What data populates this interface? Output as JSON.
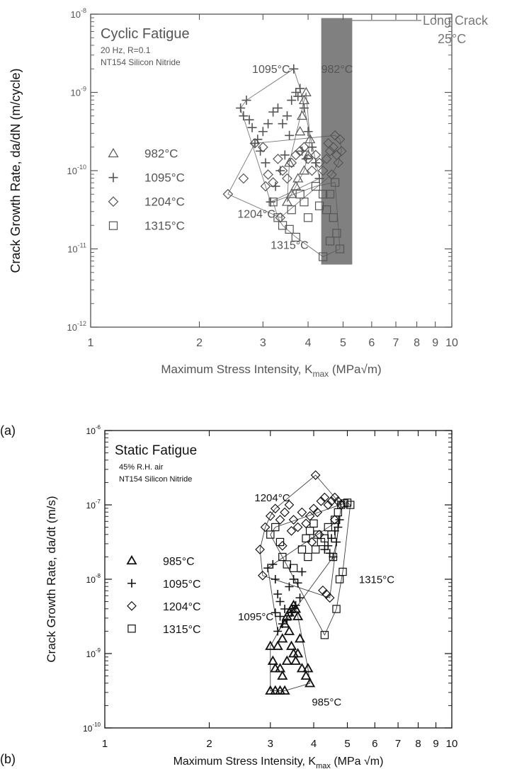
{
  "panel_labels": [
    "(a)",
    "(b)"
  ],
  "chart_data": [
    {
      "type": "scatter",
      "title": "Cyclic Fatigue",
      "subtitle_lines": [
        "20 Hz, R=0.1",
        "NT154 Silicon Nitride"
      ],
      "xlabel": "Maximum Stress Intensity, K",
      "xlabel_sub": "max",
      "xlabel_unit": " (MPa√m)",
      "ylabel": "Crack Growth Rate, da/dN (m/cycle)",
      "x_scale": "log",
      "y_scale": "log",
      "xlim": [
        1,
        10
      ],
      "ylim_exp": [
        -12,
        -8
      ],
      "x_ticks": [
        1,
        2,
        3,
        4,
        5,
        6,
        7,
        8,
        9,
        10
      ],
      "legend_position": "left",
      "band": {
        "label_lines": [
          "Long Crack",
          "25°C"
        ],
        "x": [
          4.35,
          5.3
        ],
        "y_exp": [
          -11.2,
          -8.05
        ]
      },
      "annotations": [
        {
          "text": "1095°C",
          "x": 2.8,
          "y_exp": -8.75
        },
        {
          "text": "982°C",
          "x": 4.35,
          "y_exp": -8.75
        },
        {
          "text": "1204°C",
          "x": 2.55,
          "y_exp": -10.6
        },
        {
          "text": "1315°C",
          "x": 3.15,
          "y_exp": -11.0
        }
      ],
      "series": [
        {
          "name": "982°C",
          "marker": "triangle",
          "points": [
            [
              3.5,
              -10.4
            ],
            [
              3.7,
              -10.2
            ],
            [
              3.9,
              -10.0
            ],
            [
              4.0,
              -9.8
            ],
            [
              3.8,
              -9.5
            ],
            [
              3.9,
              -9.1
            ],
            [
              3.95,
              -9.0
            ],
            [
              3.6,
              -10.3
            ],
            [
              3.55,
              -9.9
            ],
            [
              4.05,
              -9.6
            ],
            [
              3.75,
              -10.1
            ],
            [
              3.85,
              -9.3
            ]
          ]
        },
        {
          "name": "1095°C",
          "marker": "plus",
          "points": [
            [
              2.6,
              -9.2
            ],
            [
              2.7,
              -9.1
            ],
            [
              2.65,
              -9.3
            ],
            [
              2.75,
              -9.35
            ],
            [
              2.8,
              -9.45
            ],
            [
              2.9,
              -9.6
            ],
            [
              3.0,
              -9.5
            ],
            [
              3.1,
              -9.4
            ],
            [
              3.2,
              -9.25
            ],
            [
              3.3,
              -9.2
            ],
            [
              3.4,
              -9.4
            ],
            [
              3.5,
              -9.3
            ],
            [
              3.6,
              -9.1
            ],
            [
              3.7,
              -9.0
            ],
            [
              3.8,
              -8.95
            ],
            [
              3.9,
              -9.2
            ],
            [
              4.0,
              -9.5
            ],
            [
              4.1,
              -9.7
            ],
            [
              4.2,
              -9.9
            ],
            [
              4.3,
              -10.1
            ],
            [
              3.65,
              -8.7
            ],
            [
              3.75,
              -9.05
            ],
            [
              3.55,
              -9.55
            ],
            [
              3.45,
              -9.8
            ],
            [
              3.35,
              -10.0
            ],
            [
              3.25,
              -10.2
            ],
            [
              3.15,
              -10.4
            ],
            [
              3.05,
              -9.9
            ],
            [
              2.95,
              -9.75
            ],
            [
              2.85,
              -9.65
            ],
            [
              3.85,
              -9.75
            ],
            [
              3.95,
              -9.85
            ]
          ]
        },
        {
          "name": "1204°C",
          "marker": "diamond",
          "points": [
            [
              2.4,
              -10.3
            ],
            [
              2.65,
              -10.1
            ],
            [
              2.85,
              -9.65
            ],
            [
              3.0,
              -9.7
            ],
            [
              3.05,
              -10.2
            ],
            [
              3.1,
              -10.05
            ],
            [
              3.2,
              -10.15
            ],
            [
              3.3,
              -9.85
            ],
            [
              3.4,
              -10.0
            ],
            [
              3.5,
              -10.1
            ],
            [
              3.6,
              -9.9
            ],
            [
              3.7,
              -9.8
            ],
            [
              3.8,
              -9.75
            ],
            [
              3.9,
              -9.7
            ],
            [
              4.0,
              -9.85
            ],
            [
              4.1,
              -10.0
            ],
            [
              4.2,
              -9.8
            ],
            [
              4.3,
              -9.9
            ],
            [
              4.4,
              -10.0
            ],
            [
              4.5,
              -9.85
            ],
            [
              4.6,
              -9.75
            ],
            [
              4.7,
              -9.7
            ],
            [
              4.8,
              -9.8
            ],
            [
              4.9,
              -9.6
            ],
            [
              3.35,
              -10.6
            ],
            [
              4.75,
              -9.55
            ],
            [
              4.85,
              -9.9
            ],
            [
              4.65,
              -10.05
            ],
            [
              4.55,
              -9.65
            ],
            [
              4.95,
              -9.75
            ]
          ]
        },
        {
          "name": "1315°C",
          "marker": "square",
          "points": [
            [
              3.2,
              -10.4
            ],
            [
              3.3,
              -10.6
            ],
            [
              3.4,
              -10.7
            ],
            [
              3.6,
              -10.5
            ],
            [
              3.8,
              -10.3
            ],
            [
              3.9,
              -10.4
            ],
            [
              4.0,
              -10.6
            ],
            [
              4.2,
              -10.2
            ],
            [
              4.4,
              -10.3
            ],
            [
              4.5,
              -10.5
            ],
            [
              4.6,
              -10.3
            ],
            [
              4.7,
              -10.6
            ],
            [
              4.8,
              -10.8
            ],
            [
              4.9,
              -11.0
            ],
            [
              4.6,
              -10.9
            ],
            [
              4.4,
              -11.1
            ],
            [
              3.7,
              -10.85
            ],
            [
              3.55,
              -10.75
            ],
            [
              4.3,
              -10.45
            ],
            [
              4.75,
              -10.15
            ]
          ]
        }
      ]
    },
    {
      "type": "scatter",
      "title": "Static Fatigue",
      "subtitle_lines": [
        "45% R.H. air",
        "NT154 Silicon Nitride"
      ],
      "xlabel": "Maximum Stress Intensity, K",
      "xlabel_sub": "max",
      "xlabel_unit": "  (MPa √m)",
      "ylabel": "Crack Growth Rate, da/dt (m/s)",
      "x_scale": "log",
      "y_scale": "log",
      "xlim": [
        1,
        10
      ],
      "ylim_exp": [
        -10,
        -6
      ],
      "x_ticks": [
        1,
        2,
        3,
        4,
        5,
        6,
        7,
        8,
        9,
        10
      ],
      "legend_position": "left",
      "annotations": [
        {
          "text": "1204°C",
          "x": 2.7,
          "y_exp": -6.95
        },
        {
          "text": "1315°C",
          "x": 5.4,
          "y_exp": -8.05
        },
        {
          "text": "1095°C",
          "x": 2.42,
          "y_exp": -8.55
        },
        {
          "text": "985°C",
          "x": 3.95,
          "y_exp": -9.7
        }
      ],
      "series": [
        {
          "name": "985°C",
          "marker": "triangle",
          "points": [
            [
              3.0,
              -9.5
            ],
            [
              3.1,
              -9.5
            ],
            [
              3.2,
              -9.5
            ],
            [
              3.3,
              -9.5
            ],
            [
              3.05,
              -9.1
            ],
            [
              3.15,
              -8.9
            ],
            [
              3.2,
              -9.2
            ],
            [
              3.25,
              -8.8
            ],
            [
              3.3,
              -8.6
            ],
            [
              3.35,
              -8.5
            ],
            [
              3.4,
              -8.45
            ],
            [
              3.45,
              -8.4
            ],
            [
              3.5,
              -8.35
            ],
            [
              3.55,
              -8.4
            ],
            [
              3.6,
              -8.5
            ],
            [
              3.4,
              -8.7
            ],
            [
              3.45,
              -8.9
            ],
            [
              3.5,
              -9.0
            ],
            [
              3.55,
              -9.1
            ],
            [
              3.6,
              -9.0
            ],
            [
              3.7,
              -9.2
            ],
            [
              3.8,
              -9.3
            ],
            [
              3.9,
              -9.4
            ],
            [
              3.85,
              -9.2
            ],
            [
              3.65,
              -8.8
            ],
            [
              3.35,
              -9.1
            ],
            [
              3.25,
              -9.3
            ],
            [
              3.1,
              -9.2
            ],
            [
              3.0,
              -8.9
            ]
          ]
        },
        {
          "name": "1095°C",
          "marker": "plus",
          "points": [
            [
              2.95,
              -7.85
            ],
            [
              3.05,
              -7.8
            ],
            [
              3.1,
              -8.0
            ],
            [
              3.15,
              -8.2
            ],
            [
              3.2,
              -8.3
            ],
            [
              3.3,
              -8.4
            ],
            [
              3.4,
              -8.1
            ],
            [
              3.5,
              -8.0
            ],
            [
              3.6,
              -8.05
            ],
            [
              3.7,
              -7.9
            ],
            [
              3.2,
              -8.5
            ],
            [
              3.15,
              -8.7
            ],
            [
              3.25,
              -8.6
            ],
            [
              3.35,
              -8.55
            ],
            [
              3.45,
              -8.45
            ],
            [
              3.55,
              -8.35
            ],
            [
              3.65,
              -8.25
            ],
            [
              3.1,
              -8.45
            ],
            [
              4.3,
              -7.6
            ],
            [
              4.4,
              -7.55
            ],
            [
              4.5,
              -7.45
            ],
            [
              4.6,
              -7.35
            ],
            [
              4.7,
              -7.3
            ],
            [
              4.75,
              -7.2
            ],
            [
              4.65,
              -7.5
            ],
            [
              4.55,
              -7.7
            ],
            [
              4.45,
              -7.65
            ]
          ]
        },
        {
          "name": "1204°C",
          "marker": "diamond",
          "points": [
            [
              2.8,
              -7.6
            ],
            [
              2.9,
              -7.3
            ],
            [
              3.0,
              -7.15
            ],
            [
              3.1,
              -7.05
            ],
            [
              3.2,
              -7.2
            ],
            [
              3.3,
              -7.1
            ],
            [
              3.4,
              -7.0
            ],
            [
              3.5,
              -7.2
            ],
            [
              3.6,
              -7.3
            ],
            [
              3.7,
              -7.1
            ],
            [
              3.8,
              -7.25
            ],
            [
              3.9,
              -7.15
            ],
            [
              4.0,
              -7.05
            ],
            [
              4.1,
              -7.1
            ],
            [
              4.2,
              -6.95
            ],
            [
              4.3,
              -6.9
            ],
            [
              4.4,
              -7.0
            ],
            [
              4.5,
              -6.95
            ],
            [
              4.6,
              -6.9
            ],
            [
              4.7,
              -6.95
            ],
            [
              4.8,
              -7.0
            ],
            [
              4.05,
              -6.6
            ],
            [
              2.85,
              -7.95
            ],
            [
              3.25,
              -7.55
            ],
            [
              3.45,
              -7.35
            ],
            [
              4.15,
              -7.4
            ],
            [
              4.35,
              -8.2
            ],
            [
              4.45,
              -8.25
            ],
            [
              4.25,
              -8.15
            ],
            [
              3.95,
              -7.5
            ],
            [
              4.6,
              -7.2
            ]
          ]
        },
        {
          "name": "1315°C",
          "marker": "square",
          "points": [
            [
              3.0,
              -7.4
            ],
            [
              3.1,
              -7.3
            ],
            [
              3.2,
              -7.5
            ],
            [
              3.5,
              -7.85
            ],
            [
              3.7,
              -7.6
            ],
            [
              3.8,
              -7.45
            ],
            [
              3.9,
              -7.35
            ],
            [
              4.0,
              -7.25
            ],
            [
              4.1,
              -7.4
            ],
            [
              4.2,
              -7.5
            ],
            [
              4.3,
              -7.45
            ],
            [
              4.4,
              -7.3
            ],
            [
              4.5,
              -7.4
            ],
            [
              4.6,
              -7.2
            ],
            [
              4.7,
              -7.1
            ],
            [
              4.8,
              -7.0
            ],
            [
              4.9,
              -6.98
            ],
            [
              5.0,
              -6.97
            ],
            [
              5.1,
              -7.0
            ],
            [
              4.75,
              -8.0
            ],
            [
              4.65,
              -8.4
            ],
            [
              4.3,
              -8.75
            ],
            [
              4.05,
              -7.6
            ],
            [
              3.85,
              -7.7
            ],
            [
              3.25,
              -7.7
            ],
            [
              3.35,
              -7.8
            ],
            [
              4.55,
              -7.7
            ],
            [
              4.85,
              -7.9
            ]
          ]
        }
      ]
    }
  ]
}
